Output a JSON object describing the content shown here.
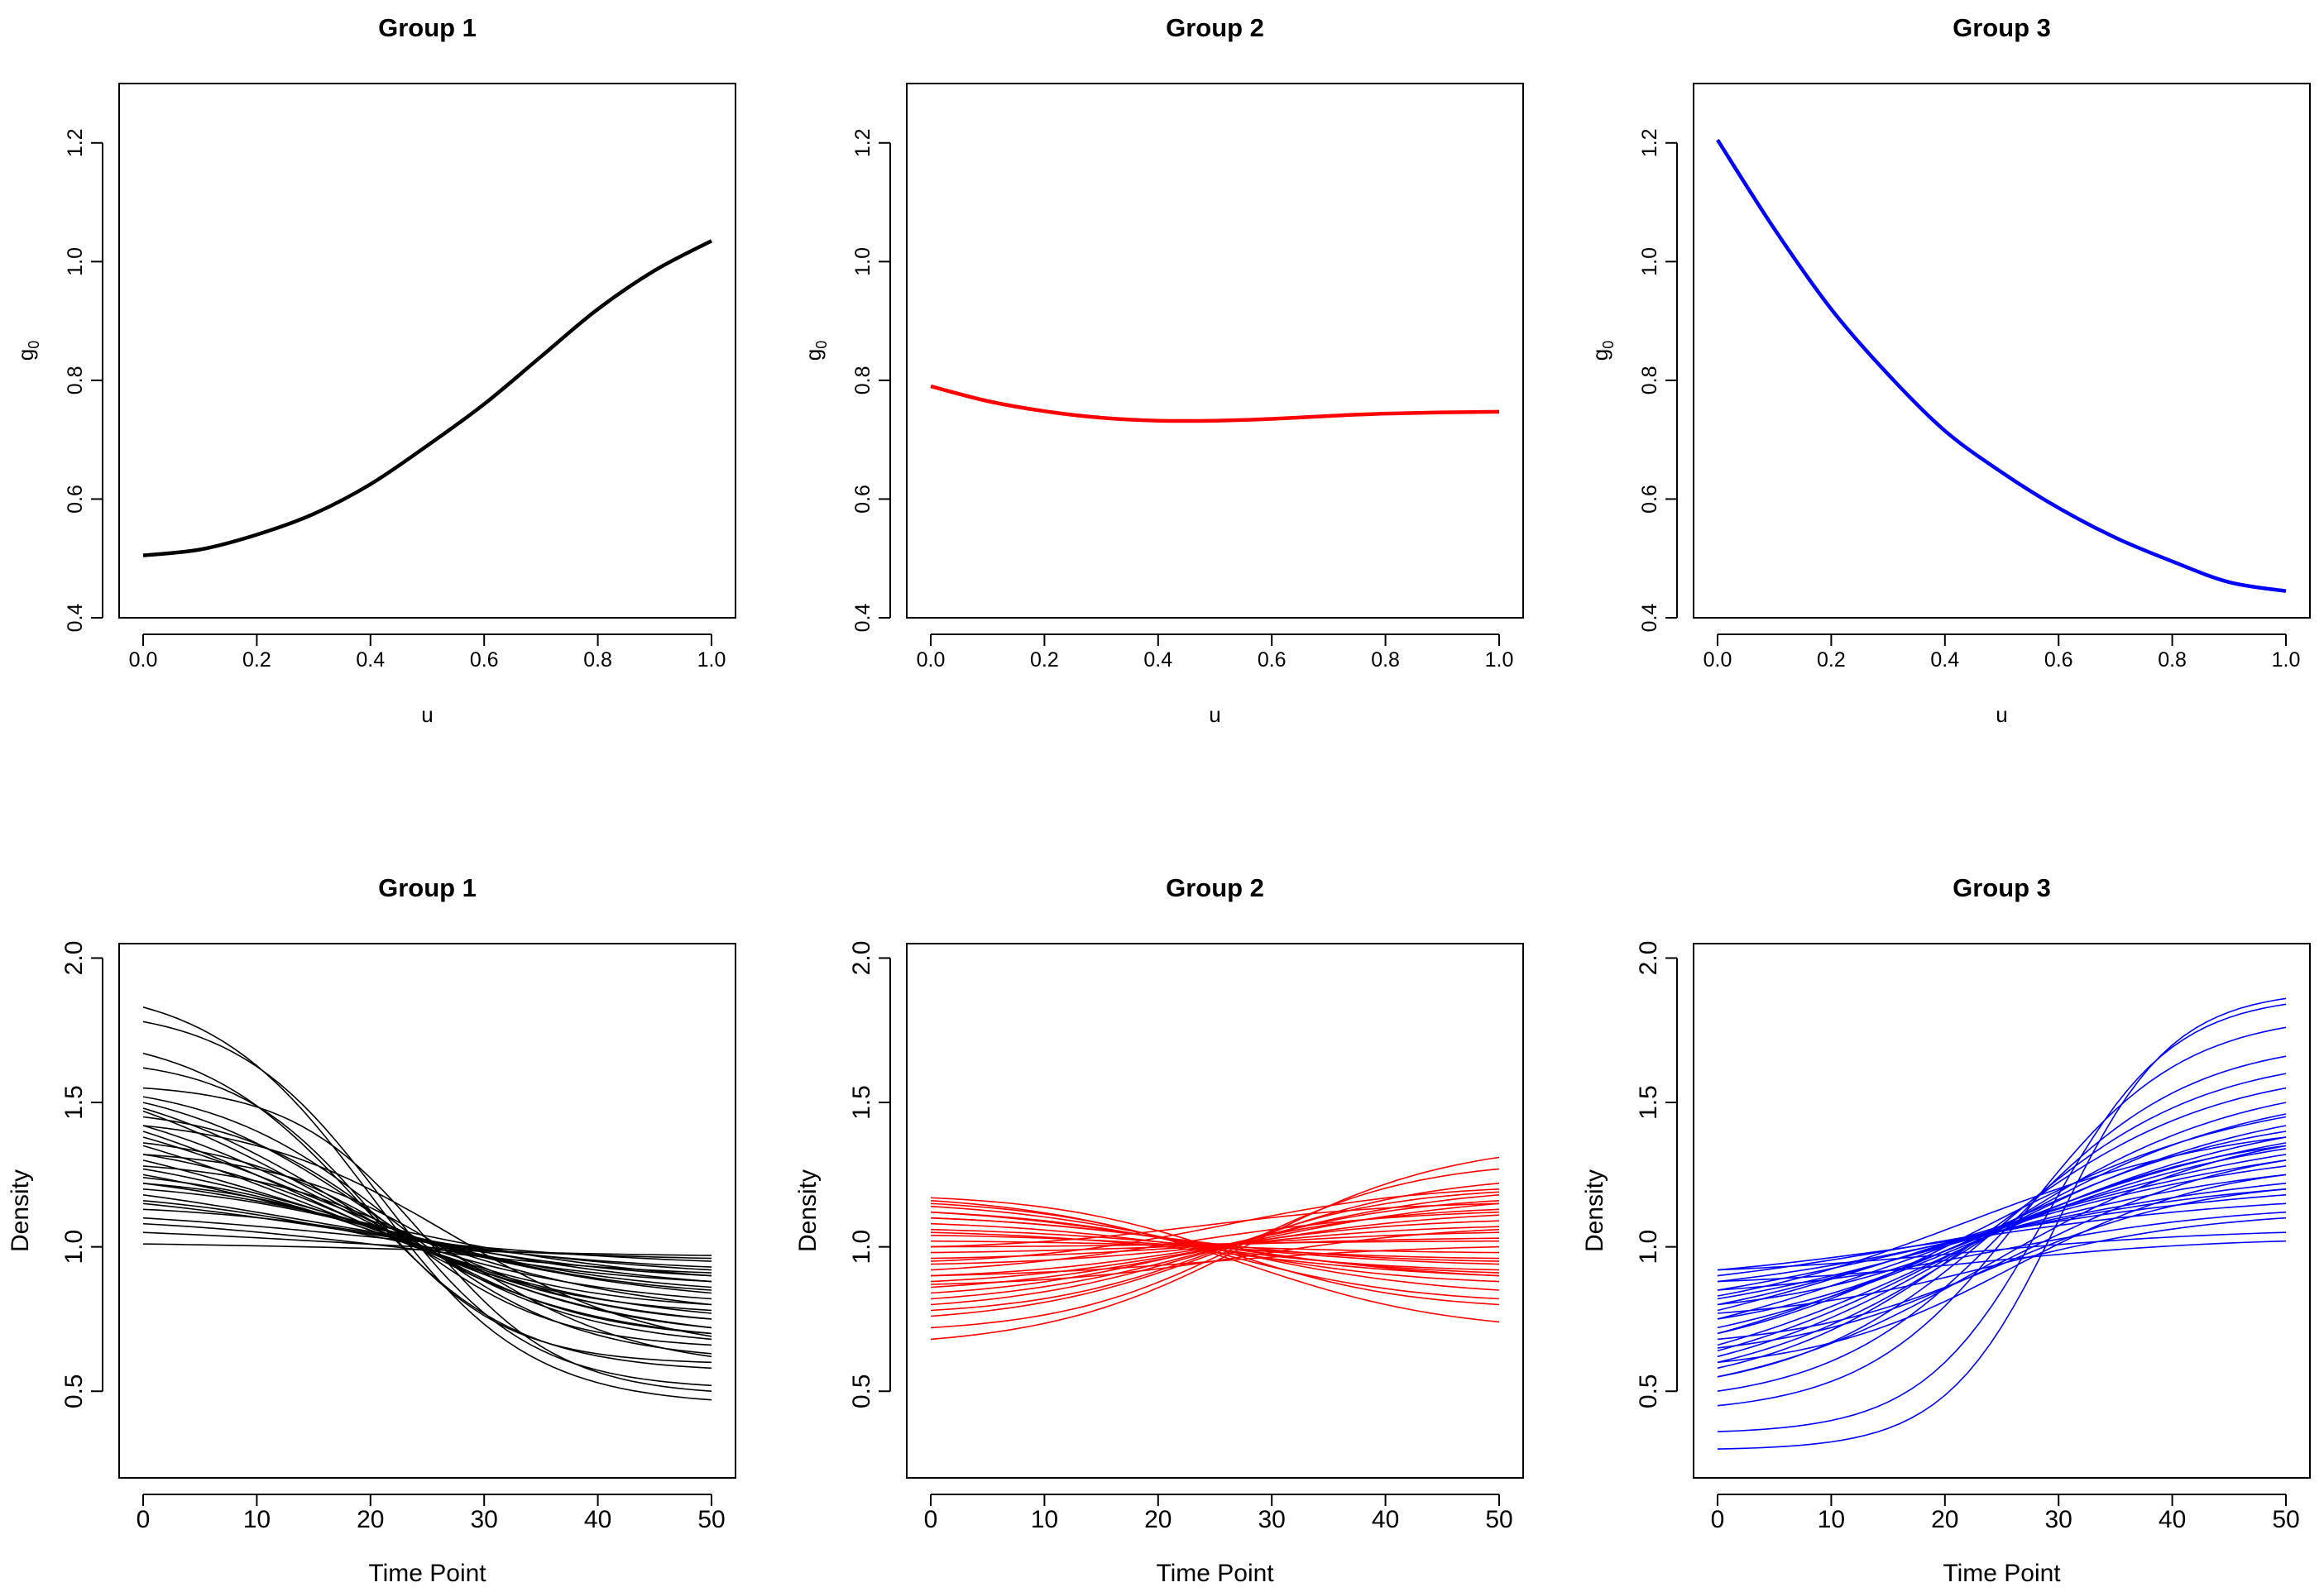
{
  "chart_data": [
    {
      "type": "line",
      "panel": "top-left",
      "title": "Group 1",
      "xlabel": "u",
      "ylabel_base": "g",
      "ylabel_sub": "0",
      "xlim": [
        0,
        1
      ],
      "ylim": [
        0.4,
        1.3
      ],
      "xticks": [
        "0.0",
        "0.2",
        "0.4",
        "0.6",
        "0.8",
        "1.0"
      ],
      "yticks": [
        "0.4",
        "0.6",
        "0.8",
        "1.0",
        "1.2"
      ],
      "color": "#000000",
      "series": [
        {
          "name": "g0",
          "x": [
            0,
            0.1,
            0.2,
            0.3,
            0.4,
            0.5,
            0.6,
            0.7,
            0.8,
            0.9,
            1.0
          ],
          "y": [
            0.505,
            0.515,
            0.54,
            0.575,
            0.625,
            0.69,
            0.76,
            0.84,
            0.92,
            0.985,
            1.035
          ]
        }
      ]
    },
    {
      "type": "line",
      "panel": "top-middle",
      "title": "Group 2",
      "xlabel": "u",
      "ylabel_base": "g",
      "ylabel_sub": "0",
      "xlim": [
        0,
        1
      ],
      "ylim": [
        0.4,
        1.3
      ],
      "xticks": [
        "0.0",
        "0.2",
        "0.4",
        "0.6",
        "0.8",
        "1.0"
      ],
      "yticks": [
        "0.4",
        "0.6",
        "0.8",
        "1.0",
        "1.2"
      ],
      "color": "#ff0000",
      "series": [
        {
          "name": "g0",
          "x": [
            0,
            0.1,
            0.2,
            0.3,
            0.4,
            0.5,
            0.6,
            0.7,
            0.8,
            0.9,
            1.0
          ],
          "y": [
            0.79,
            0.765,
            0.748,
            0.737,
            0.732,
            0.732,
            0.735,
            0.74,
            0.744,
            0.746,
            0.747
          ]
        }
      ]
    },
    {
      "type": "line",
      "panel": "top-right",
      "title": "Group 3",
      "xlabel": "u",
      "ylabel_base": "g",
      "ylabel_sub": "0",
      "xlim": [
        0,
        1
      ],
      "ylim": [
        0.4,
        1.3
      ],
      "xticks": [
        "0.0",
        "0.2",
        "0.4",
        "0.6",
        "0.8",
        "1.0"
      ],
      "yticks": [
        "0.4",
        "0.6",
        "0.8",
        "1.0",
        "1.2"
      ],
      "color": "#0000ff",
      "series": [
        {
          "name": "g0",
          "x": [
            0,
            0.1,
            0.2,
            0.3,
            0.4,
            0.5,
            0.6,
            0.7,
            0.8,
            0.9,
            1.0
          ],
          "y": [
            1.205,
            1.055,
            0.92,
            0.81,
            0.715,
            0.645,
            0.585,
            0.535,
            0.495,
            0.46,
            0.445
          ]
        }
      ]
    },
    {
      "type": "line",
      "panel": "bottom-left",
      "title": "Group 1",
      "xlabel": "Time Point",
      "ylabel": "Density",
      "xlim": [
        0,
        50
      ],
      "ylim": [
        0.2,
        2.05
      ],
      "xticks": [
        "0",
        "10",
        "20",
        "30",
        "40",
        "50"
      ],
      "yticks": [
        "0.5",
        "1.0",
        "1.5",
        "2.0"
      ],
      "color": "#000000",
      "curve_params": [
        [
          1.83,
          0.47,
          20,
          7
        ],
        [
          1.78,
          0.52,
          21,
          6.5
        ],
        [
          1.67,
          0.58,
          19,
          7
        ],
        [
          1.62,
          0.6,
          20,
          6
        ],
        [
          1.55,
          0.5,
          25,
          6
        ],
        [
          1.52,
          0.63,
          22,
          8
        ],
        [
          1.5,
          0.68,
          20,
          9
        ],
        [
          1.48,
          0.7,
          18,
          10
        ],
        [
          1.47,
          0.72,
          16,
          12
        ],
        [
          1.45,
          0.66,
          22,
          7
        ],
        [
          1.42,
          0.75,
          17,
          11
        ],
        [
          1.4,
          0.77,
          15,
          12
        ],
        [
          1.38,
          0.8,
          16,
          13
        ],
        [
          1.36,
          0.7,
          23,
          8
        ],
        [
          1.35,
          0.82,
          14,
          12
        ],
        [
          1.32,
          0.78,
          20,
          9
        ],
        [
          1.3,
          0.84,
          15,
          14
        ],
        [
          1.28,
          0.75,
          25,
          8
        ],
        [
          1.27,
          0.86,
          18,
          12
        ],
        [
          1.25,
          0.88,
          16,
          14
        ],
        [
          1.24,
          0.8,
          22,
          9
        ],
        [
          1.22,
          0.9,
          20,
          13
        ],
        [
          1.2,
          0.85,
          24,
          10
        ],
        [
          1.18,
          0.92,
          15,
          15
        ],
        [
          1.16,
          0.88,
          21,
          11
        ],
        [
          1.15,
          0.93,
          17,
          13
        ],
        [
          1.13,
          0.9,
          25,
          10
        ],
        [
          1.1,
          0.95,
          20,
          14
        ],
        [
          1.08,
          0.91,
          22,
          12
        ],
        [
          1.05,
          0.96,
          18,
          15
        ],
        [
          1.01,
          0.97,
          24,
          14
        ],
        [
          1.22,
          0.72,
          26,
          9
        ],
        [
          1.32,
          0.62,
          28,
          8
        ],
        [
          1.42,
          0.69,
          27,
          9
        ]
      ]
    },
    {
      "type": "line",
      "panel": "bottom-middle",
      "title": "Group 2",
      "xlabel": "Time Point",
      "ylabel": "Density",
      "xlim": [
        0,
        50
      ],
      "ylim": [
        0.2,
        2.05
      ],
      "xticks": [
        "0",
        "10",
        "20",
        "30",
        "40",
        "50"
      ],
      "yticks": [
        "0.5",
        "1.0",
        "1.5",
        "2.0"
      ],
      "color": "#ff0000",
      "curve_params": [
        [
          0.68,
          1.31,
          28,
          9
        ],
        [
          0.72,
          1.27,
          27,
          8
        ],
        [
          0.76,
          1.22,
          26,
          9
        ],
        [
          0.78,
          1.19,
          25,
          8
        ],
        [
          0.8,
          1.16,
          24,
          9
        ],
        [
          0.82,
          1.18,
          26,
          10
        ],
        [
          0.84,
          1.13,
          23,
          9
        ],
        [
          0.86,
          1.15,
          27,
          11
        ],
        [
          0.88,
          1.11,
          25,
          10
        ],
        [
          0.9,
          1.09,
          24,
          9
        ],
        [
          0.92,
          1.12,
          22,
          10
        ],
        [
          0.94,
          1.07,
          26,
          9
        ],
        [
          0.96,
          1.05,
          25,
          10
        ],
        [
          0.98,
          1.03,
          24,
          11
        ],
        [
          1.0,
          1.02,
          25,
          9
        ],
        [
          1.02,
          0.98,
          26,
          10
        ],
        [
          1.04,
          0.96,
          24,
          9
        ],
        [
          1.06,
          0.94,
          25,
          10
        ],
        [
          1.08,
          0.92,
          23,
          9
        ],
        [
          1.1,
          0.9,
          26,
          10
        ],
        [
          1.12,
          0.88,
          24,
          9
        ],
        [
          1.14,
          0.85,
          25,
          10
        ],
        [
          1.16,
          0.82,
          24,
          9
        ],
        [
          1.17,
          0.8,
          26,
          8
        ],
        [
          1.15,
          0.74,
          28,
          9
        ],
        [
          1.12,
          0.91,
          22,
          10
        ],
        [
          1.05,
          0.9,
          27,
          10
        ],
        [
          0.95,
          1.2,
          26,
          9
        ],
        [
          0.9,
          1.0,
          25,
          10
        ],
        [
          1.0,
          1.15,
          24,
          9
        ],
        [
          0.87,
          1.06,
          28,
          9
        ],
        [
          1.1,
          0.95,
          21,
          9
        ]
      ]
    },
    {
      "type": "line",
      "panel": "bottom-right",
      "title": "Group 3",
      "xlabel": "Time Point",
      "ylabel": "Density",
      "xlim": [
        0,
        50
      ],
      "ylim": [
        0.2,
        2.05
      ],
      "xticks": [
        "0",
        "10",
        "20",
        "30",
        "40",
        "50"
      ],
      "yticks": [
        "0.5",
        "1.0",
        "1.5",
        "2.0"
      ],
      "color": "#0000ff",
      "curve_params": [
        [
          0.3,
          1.86,
          30,
          5
        ],
        [
          0.36,
          1.84,
          29,
          5.5
        ],
        [
          0.45,
          1.76,
          27,
          7
        ],
        [
          0.5,
          1.66,
          26,
          8
        ],
        [
          0.55,
          1.6,
          25,
          9
        ],
        [
          0.58,
          1.55,
          24,
          10
        ],
        [
          0.6,
          1.5,
          24,
          11
        ],
        [
          0.62,
          1.46,
          23,
          12
        ],
        [
          0.64,
          1.42,
          22,
          13
        ],
        [
          0.66,
          1.38,
          21,
          14
        ],
        [
          0.7,
          1.36,
          20,
          15
        ],
        [
          0.72,
          1.34,
          22,
          13
        ],
        [
          0.75,
          1.32,
          19,
          16
        ],
        [
          0.78,
          1.3,
          18,
          17
        ],
        [
          0.8,
          1.28,
          20,
          15
        ],
        [
          0.82,
          1.25,
          21,
          14
        ],
        [
          0.85,
          1.22,
          19,
          16
        ],
        [
          0.88,
          1.2,
          22,
          13
        ],
        [
          0.9,
          1.18,
          20,
          15
        ],
        [
          0.92,
          1.15,
          21,
          14
        ],
        [
          0.92,
          1.05,
          22,
          12
        ],
        [
          0.88,
          1.02,
          23,
          11
        ],
        [
          0.85,
          1.12,
          24,
          11
        ],
        [
          0.8,
          1.35,
          26,
          10
        ],
        [
          0.75,
          1.4,
          25,
          11
        ],
        [
          0.65,
          1.3,
          27,
          10
        ],
        [
          0.6,
          1.25,
          26,
          9
        ],
        [
          0.55,
          1.35,
          24,
          11
        ],
        [
          0.7,
          1.45,
          23,
          12
        ],
        [
          0.77,
          1.1,
          24,
          10
        ],
        [
          0.68,
          1.2,
          25,
          9
        ],
        [
          0.83,
          1.38,
          22,
          12
        ]
      ]
    }
  ]
}
